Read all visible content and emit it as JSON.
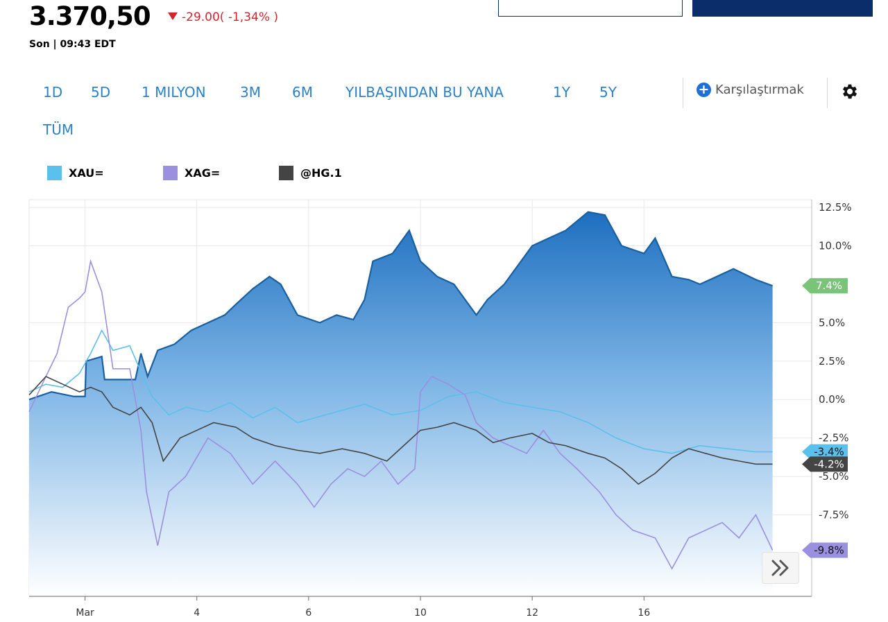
{
  "quote": {
    "price": "3.370,50",
    "change": "-29.00( -1,34% )",
    "last_label": "Son | 09:43 EDT"
  },
  "ranges": [
    "1D",
    "5D",
    "1 MILYON",
    "3M",
    "6M",
    "YILBAŞINDAN BU YANA",
    "1Y",
    "5Y",
    "TÜM"
  ],
  "compare_label": "Karşılaştırmak",
  "colors": {
    "accent": "#2b82c9",
    "down": "#d4252b",
    "xau": "#5bc0eb",
    "xag": "#9b8fe0",
    "hg": "#444444",
    "area": "#1e6fc0",
    "last_badge": "#7ac47a"
  },
  "chart_data": {
    "type": "area",
    "ylabels": [
      "12.5%",
      "10.0%",
      "5.0%",
      "2.5%",
      "0.0%",
      "-2.5%",
      "-5.0%",
      "-7.5%"
    ],
    "yticks": [
      12.5,
      10.0,
      5.0,
      2.5,
      0.0,
      -2.5,
      -5.0,
      -7.5
    ],
    "ylim": [
      -12.8,
      13.0
    ],
    "xlim": [
      0,
      14
    ],
    "xticks": [
      {
        "x": 1,
        "label": "Mar"
      },
      {
        "x": 3,
        "label": "4"
      },
      {
        "x": 5,
        "label": "6"
      },
      {
        "x": 7,
        "label": "10"
      },
      {
        "x": 9,
        "label": "12"
      },
      {
        "x": 11,
        "label": "16"
      }
    ],
    "grid": true,
    "series": [
      {
        "name": "3.370,50",
        "role": "area",
        "color": "#1e6fc0",
        "last_label": "7.4%",
        "badge_color": "#7ac47a",
        "points": [
          [
            0,
            0
          ],
          [
            0.4,
            0.5
          ],
          [
            0.8,
            0.2
          ],
          [
            1.0,
            0.2
          ],
          [
            1.02,
            2.5
          ],
          [
            1.3,
            2.8
          ],
          [
            1.35,
            1.3
          ],
          [
            1.6,
            1.3
          ],
          [
            1.9,
            1.3
          ],
          [
            2.0,
            3.0
          ],
          [
            2.12,
            1.5
          ],
          [
            2.3,
            3.2
          ],
          [
            2.6,
            3.6
          ],
          [
            2.9,
            4.5
          ],
          [
            3.2,
            5.0
          ],
          [
            3.5,
            5.5
          ],
          [
            3.7,
            6.2
          ],
          [
            4.0,
            7.2
          ],
          [
            4.3,
            8.0
          ],
          [
            4.5,
            7.5
          ],
          [
            4.8,
            5.5
          ],
          [
            5.2,
            5.0
          ],
          [
            5.5,
            5.5
          ],
          [
            5.8,
            5.2
          ],
          [
            6.0,
            6.5
          ],
          [
            6.15,
            9.0
          ],
          [
            6.5,
            9.5
          ],
          [
            6.8,
            11.0
          ],
          [
            7.0,
            9.0
          ],
          [
            7.3,
            8.0
          ],
          [
            7.6,
            7.5
          ],
          [
            8.0,
            5.5
          ],
          [
            8.2,
            6.5
          ],
          [
            8.5,
            7.5
          ],
          [
            8.8,
            9.0
          ],
          [
            9.0,
            10.0
          ],
          [
            9.3,
            10.5
          ],
          [
            9.6,
            11.0
          ],
          [
            10.0,
            12.2
          ],
          [
            10.3,
            12.0
          ],
          [
            10.6,
            10.0
          ],
          [
            11.0,
            9.5
          ],
          [
            11.2,
            10.5
          ],
          [
            11.5,
            8.0
          ],
          [
            11.8,
            7.8
          ],
          [
            12.0,
            7.5
          ],
          [
            12.3,
            8.0
          ],
          [
            12.6,
            8.5
          ],
          [
            13.0,
            7.8
          ],
          [
            13.3,
            7.4
          ]
        ]
      },
      {
        "name": "XAU=",
        "color": "#5bc0eb",
        "last_label": "-3.4%",
        "points": [
          [
            0,
            0.5
          ],
          [
            0.3,
            1.0
          ],
          [
            0.6,
            0.8
          ],
          [
            0.9,
            1.7
          ],
          [
            1.1,
            3.0
          ],
          [
            1.3,
            4.5
          ],
          [
            1.5,
            3.2
          ],
          [
            1.8,
            3.5
          ],
          [
            2.0,
            1.8
          ],
          [
            2.2,
            0.2
          ],
          [
            2.5,
            -1.0
          ],
          [
            2.8,
            -0.5
          ],
          [
            3.2,
            -0.8
          ],
          [
            3.6,
            -0.2
          ],
          [
            4.0,
            -1.2
          ],
          [
            4.4,
            -0.5
          ],
          [
            4.8,
            -1.5
          ],
          [
            5.0,
            -1.3
          ],
          [
            5.5,
            -0.8
          ],
          [
            6.0,
            -0.3
          ],
          [
            6.5,
            -1.0
          ],
          [
            7.0,
            -0.7
          ],
          [
            7.5,
            0.2
          ],
          [
            8.0,
            0.5
          ],
          [
            8.5,
            -0.2
          ],
          [
            9.0,
            -0.5
          ],
          [
            9.5,
            -0.8
          ],
          [
            10.0,
            -1.5
          ],
          [
            10.5,
            -2.5
          ],
          [
            11.0,
            -3.2
          ],
          [
            11.5,
            -3.5
          ],
          [
            12.0,
            -3.0
          ],
          [
            12.5,
            -3.2
          ],
          [
            13.0,
            -3.4
          ],
          [
            13.3,
            -3.4
          ]
        ]
      },
      {
        "name": "XAG=",
        "color": "#9b8fe0",
        "last_label": "-9.8%",
        "points": [
          [
            0,
            -0.8
          ],
          [
            0.3,
            1.5
          ],
          [
            0.5,
            3.0
          ],
          [
            0.7,
            6.0
          ],
          [
            0.9,
            6.6
          ],
          [
            1.0,
            7.0
          ],
          [
            1.1,
            9.0
          ],
          [
            1.3,
            7.0
          ],
          [
            1.5,
            2.0
          ],
          [
            1.8,
            2.0
          ],
          [
            2.0,
            -2.0
          ],
          [
            2.1,
            -6.0
          ],
          [
            2.3,
            -9.5
          ],
          [
            2.5,
            -6.0
          ],
          [
            2.8,
            -5.0
          ],
          [
            3.2,
            -2.5
          ],
          [
            3.6,
            -3.5
          ],
          [
            4.0,
            -5.5
          ],
          [
            4.4,
            -4.0
          ],
          [
            4.8,
            -5.5
          ],
          [
            5.1,
            -7.0
          ],
          [
            5.4,
            -5.5
          ],
          [
            5.7,
            -4.5
          ],
          [
            6.0,
            -5.0
          ],
          [
            6.3,
            -4.0
          ],
          [
            6.6,
            -5.5
          ],
          [
            6.9,
            -4.5
          ],
          [
            7.0,
            0.5
          ],
          [
            7.2,
            1.5
          ],
          [
            7.5,
            1.0
          ],
          [
            7.8,
            0.3
          ],
          [
            8.0,
            -1.5
          ],
          [
            8.3,
            -2.5
          ],
          [
            8.6,
            -3.0
          ],
          [
            8.9,
            -3.5
          ],
          [
            9.2,
            -2.0
          ],
          [
            9.5,
            -3.5
          ],
          [
            9.8,
            -4.5
          ],
          [
            10.2,
            -6.0
          ],
          [
            10.5,
            -7.5
          ],
          [
            10.8,
            -8.5
          ],
          [
            11.2,
            -9.0
          ],
          [
            11.5,
            -11.0
          ],
          [
            11.8,
            -9.0
          ],
          [
            12.1,
            -8.5
          ],
          [
            12.4,
            -8.0
          ],
          [
            12.7,
            -9.0
          ],
          [
            13.0,
            -7.5
          ],
          [
            13.3,
            -9.8
          ]
        ]
      },
      {
        "name": "@HG.1",
        "color": "#444444",
        "last_label": "-4.2%",
        "points": [
          [
            0,
            0.3
          ],
          [
            0.3,
            1.5
          ],
          [
            0.6,
            1.0
          ],
          [
            0.9,
            0.5
          ],
          [
            1.1,
            0.8
          ],
          [
            1.3,
            0.5
          ],
          [
            1.5,
            -0.5
          ],
          [
            1.8,
            -1.0
          ],
          [
            2.0,
            -0.5
          ],
          [
            2.2,
            -1.5
          ],
          [
            2.4,
            -4.0
          ],
          [
            2.7,
            -2.5
          ],
          [
            3.0,
            -2.0
          ],
          [
            3.3,
            -1.5
          ],
          [
            3.7,
            -1.8
          ],
          [
            4.0,
            -2.5
          ],
          [
            4.4,
            -3.0
          ],
          [
            4.8,
            -3.3
          ],
          [
            5.2,
            -3.5
          ],
          [
            5.6,
            -3.2
          ],
          [
            6.0,
            -3.5
          ],
          [
            6.4,
            -4.0
          ],
          [
            6.7,
            -3.0
          ],
          [
            7.0,
            -2.0
          ],
          [
            7.3,
            -1.8
          ],
          [
            7.6,
            -1.5
          ],
          [
            8.0,
            -2.0
          ],
          [
            8.3,
            -2.8
          ],
          [
            8.6,
            -2.5
          ],
          [
            9.0,
            -2.2
          ],
          [
            9.3,
            -2.8
          ],
          [
            9.6,
            -3.0
          ],
          [
            10.0,
            -3.5
          ],
          [
            10.3,
            -3.8
          ],
          [
            10.6,
            -4.5
          ],
          [
            10.9,
            -5.5
          ],
          [
            11.2,
            -4.8
          ],
          [
            11.5,
            -3.8
          ],
          [
            11.8,
            -3.2
          ],
          [
            12.1,
            -3.5
          ],
          [
            12.4,
            -3.8
          ],
          [
            12.7,
            -4.0
          ],
          [
            13.0,
            -4.2
          ],
          [
            13.3,
            -4.2
          ]
        ]
      }
    ]
  }
}
